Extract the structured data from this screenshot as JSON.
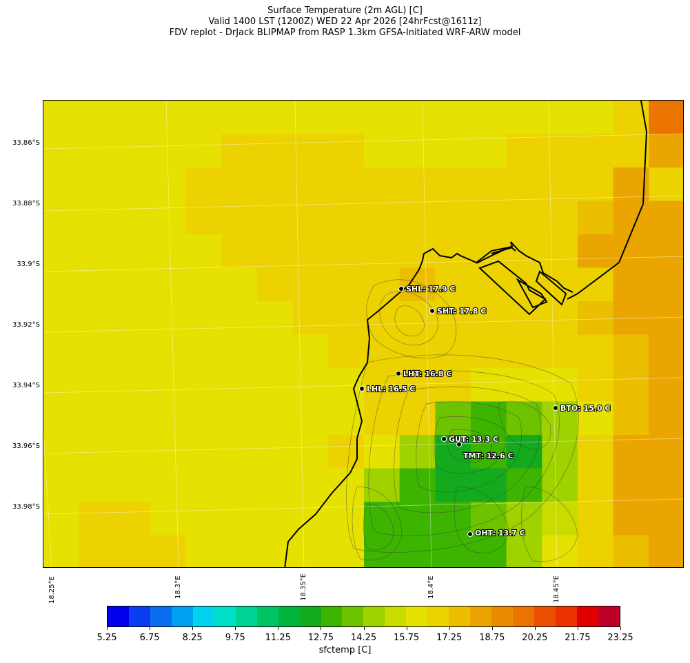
{
  "titles": [
    "Surface Temperature (2m AGL) [C]",
    "Valid 1400 LST (1200Z) WED 22 Apr 2026 [24hrFcst@1611z]",
    "FDV replot - DrJack BLIPMAP from RASP 1.3km GFSA-Initiated WRF-ARW model"
  ],
  "lat_labels": [
    "33.86°S",
    "33.88°S",
    "33.9°S",
    "33.92°S",
    "33.94°S",
    "33.96°S",
    "33.98°S"
  ],
  "lon_labels": [
    "18.25°E",
    "18.3°E",
    "18.35°E",
    "18.4°E",
    "18.45°E"
  ],
  "stations": [
    {
      "label": "SHL: 17.9 C"
    },
    {
      "label": "SHT: 17.8 C"
    },
    {
      "label": "LHT: 16.8 C"
    },
    {
      "label": "LHL: 16.5 C"
    },
    {
      "label": "BTO: 15.0 C"
    },
    {
      "label": "GUT: 13.3 C"
    },
    {
      "label": "TMT: 12.6 C"
    },
    {
      "label": "OHT: 13.7 C"
    }
  ],
  "colorbar": {
    "label": "sfctemp [C]",
    "tick_labels": [
      "5.25",
      "6.75",
      "8.25",
      "9.75",
      "11.25",
      "12.75",
      "14.25",
      "15.75",
      "17.25",
      "18.75",
      "20.25",
      "21.75",
      "23.25"
    ],
    "colors": [
      "#0000ee",
      "#0a3cf0",
      "#0a6ef0",
      "#00a0f0",
      "#00d2f0",
      "#00e0c8",
      "#00d296",
      "#00c364",
      "#00b43c",
      "#14aa1e",
      "#3cb400",
      "#6ec300",
      "#a0d200",
      "#c8dc00",
      "#e6e100",
      "#ebd200",
      "#ebbe00",
      "#eba500",
      "#eb8c00",
      "#eb7300",
      "#eb5000",
      "#eb3200",
      "#e00000",
      "#be0028"
    ]
  },
  "map": {
    "grid_temps": [
      [
        16.0,
        16.0,
        16.0,
        16.0,
        16.0,
        16.0,
        16.0,
        16.0,
        16.0,
        16.0,
        16.0,
        16.0,
        16.0,
        16.0,
        16.0,
        16.0,
        17.0,
        19.6
      ],
      [
        16.0,
        16.0,
        16.0,
        16.0,
        16.0,
        16.5,
        16.5,
        16.5,
        16.5,
        16.0,
        16.0,
        16.0,
        16.0,
        16.5,
        16.5,
        16.5,
        17.0,
        18.2
      ],
      [
        16.0,
        16.0,
        16.0,
        16.0,
        16.5,
        16.5,
        16.5,
        16.5,
        16.5,
        16.5,
        16.5,
        16.5,
        16.5,
        16.5,
        16.5,
        16.5,
        18.2,
        17.2
      ],
      [
        16.0,
        16.0,
        16.0,
        16.0,
        16.5,
        16.5,
        16.5,
        16.5,
        16.5,
        16.5,
        16.5,
        16.5,
        16.5,
        16.5,
        16.5,
        17.3,
        18.2,
        18.2
      ],
      [
        16.0,
        16.0,
        16.0,
        16.0,
        16.0,
        16.5,
        16.5,
        16.5,
        17.0,
        17.0,
        16.5,
        16.5,
        16.5,
        16.5,
        17.0,
        18.2,
        18.2,
        18.2
      ],
      [
        16.0,
        16.0,
        16.0,
        16.0,
        16.0,
        16.0,
        16.5,
        16.5,
        16.5,
        17.0,
        17.4,
        17.0,
        16.5,
        16.5,
        16.5,
        17.2,
        18.2,
        18.2
      ],
      [
        16.0,
        16.0,
        16.0,
        16.0,
        16.0,
        16.0,
        16.0,
        16.5,
        16.5,
        16.5,
        17.0,
        17.0,
        17.0,
        17.0,
        17.0,
        17.4,
        18.2,
        18.2
      ],
      [
        16.0,
        16.0,
        16.0,
        16.0,
        16.0,
        16.0,
        16.0,
        16.0,
        16.5,
        16.5,
        16.5,
        17.0,
        17.0,
        16.5,
        16.5,
        17.0,
        17.4,
        18.2
      ],
      [
        16.0,
        16.0,
        16.0,
        16.0,
        16.0,
        16.0,
        16.0,
        16.0,
        16.0,
        16.5,
        16.5,
        16.5,
        15.8,
        15.8,
        15.8,
        16.5,
        17.4,
        18.2
      ],
      [
        16.0,
        16.0,
        16.0,
        16.0,
        16.0,
        16.0,
        16.0,
        16.0,
        16.0,
        16.5,
        16.5,
        13.8,
        13.3,
        13.8,
        14.5,
        16.0,
        17.4,
        18.2
      ],
      [
        16.0,
        16.0,
        16.0,
        16.0,
        16.0,
        16.0,
        16.0,
        16.0,
        16.5,
        16.0,
        14.5,
        12.7,
        13.3,
        12.5,
        14.5,
        17.0,
        18.2,
        18.2
      ],
      [
        16.0,
        16.0,
        16.0,
        16.0,
        16.0,
        16.0,
        16.0,
        16.0,
        16.0,
        14.5,
        13.3,
        12.7,
        12.7,
        13.3,
        14.5,
        17.0,
        18.2,
        18.2
      ],
      [
        16.0,
        16.5,
        16.5,
        16.0,
        16.0,
        16.0,
        16.0,
        16.0,
        16.0,
        13.3,
        13.3,
        13.3,
        13.8,
        14.5,
        15.5,
        17.0,
        18.2,
        18.2
      ],
      [
        16.0,
        16.5,
        16.5,
        16.5,
        16.0,
        16.0,
        16.0,
        16.0,
        16.0,
        13.3,
        13.3,
        13.3,
        13.3,
        14.5,
        16.0,
        17.0,
        17.4,
        18.2
      ]
    ]
  }
}
